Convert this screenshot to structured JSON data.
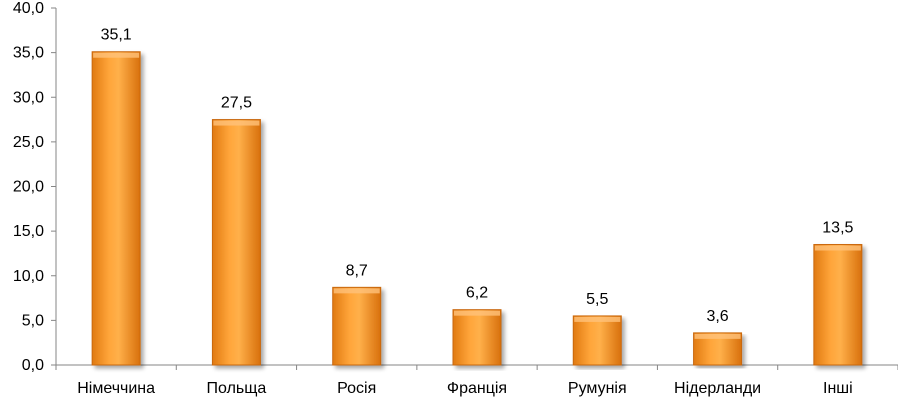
{
  "chart_data": {
    "type": "bar",
    "categories": [
      "Німеччина",
      "Польща",
      "Росія",
      "Франція",
      "Румунія",
      "Нідерланди",
      "Інші"
    ],
    "values": [
      35.1,
      27.5,
      8.7,
      6.2,
      5.5,
      3.6,
      13.5
    ],
    "value_labels": [
      "35,1",
      "27,5",
      "8,7",
      "6,2",
      "5,5",
      "3,6",
      "13,5"
    ],
    "yticks": [
      "0,0",
      "5,0",
      "10,0",
      "15,0",
      "20,0",
      "25,0",
      "30,0",
      "35,0",
      "40,0"
    ],
    "ylim": [
      0,
      40
    ],
    "grid": false,
    "legend": "none",
    "bar_color": "#F7931E",
    "bar_highlight": "#FFC06A",
    "bar_shadow": "#D06A0A"
  }
}
